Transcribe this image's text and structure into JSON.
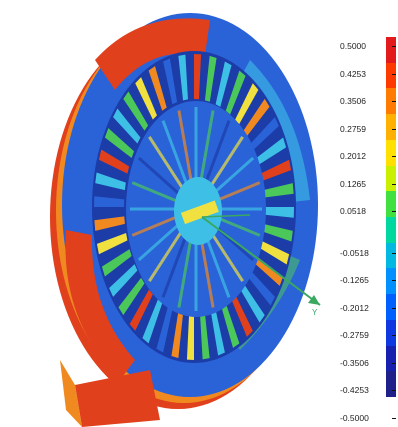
{
  "legend": {
    "ticks": [
      "0.5000",
      "0.4253",
      "0.3506",
      "0.2759",
      "0.2012",
      "0.1265",
      "0.0518",
      "-0.0518",
      "-0.1265",
      "-0.2012",
      "-0.2759",
      "-0.3506",
      "-0.4253",
      "-0.5000"
    ],
    "colors": [
      "#e31a1c",
      "#ff3a00",
      "#ff7a00",
      "#ffb000",
      "#ffe000",
      "#c8f000",
      "#40e040",
      "#00d8a0",
      "#00b8e0",
      "#0090ff",
      "#0060ff",
      "#1038e0",
      "#1820b0",
      "#20208a"
    ]
  },
  "axis": {
    "label": "Y"
  },
  "colors": {
    "red": "#e0401c",
    "orange": "#f08a20",
    "blue": "#2a62d8",
    "darkblue": "#1c3ca8",
    "cyan": "#3ec0e6",
    "green": "#4cc85a",
    "yellow": "#f0e040"
  }
}
